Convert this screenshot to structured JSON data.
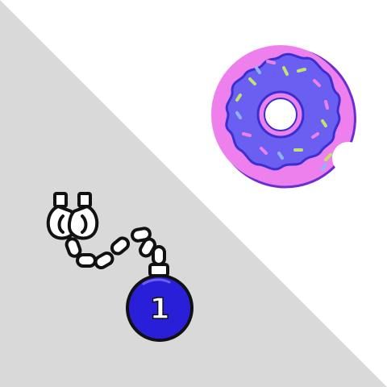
{
  "scene": {
    "background_colors": {
      "upper": "#ffffff",
      "lower": "#d9d9d9"
    }
  },
  "donut": {
    "icon": "donut-icon",
    "dough_color": "#ee80ee",
    "frosting_color": "#6b5ff2",
    "outline_color": "#3a2fd0",
    "sprinkle_colors": [
      "#ee80ee",
      "#c6e06a",
      "#8fb3ff",
      "#ffffff"
    ]
  },
  "ball_and_chain": {
    "icon": "ball-and-chain-icon",
    "ball_color": "#2a1fd8",
    "outline_color": "#111111",
    "chain_color": "#ffffff",
    "ball_number": "1"
  }
}
